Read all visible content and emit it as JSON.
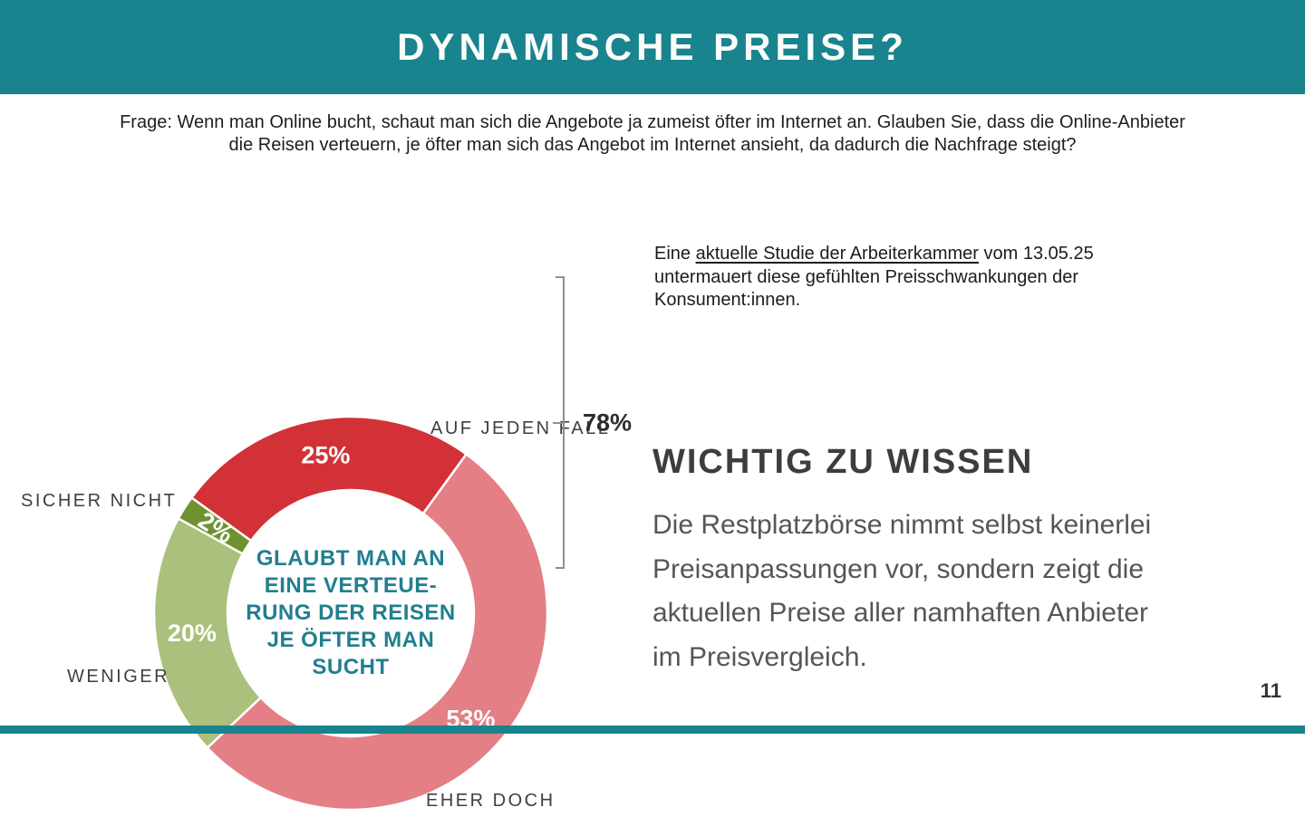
{
  "slide": {
    "title": "DYNAMISCHE PREISE?",
    "question": "Frage: Wenn man Online bucht, schaut man sich die Angebote ja zumeist öfter im Internet an. Glauben Sie, dass die Online-Anbieter\ndie Reisen verteuern, je öfter man sich das Angebot im Internet ansieht, da dadurch die Nachfrage steigt?",
    "page_number": "11"
  },
  "study_note": {
    "prefix": "Eine ",
    "link_text": "aktuelle Studie der Arbeiterkammer",
    "suffix": " vom 13.05.25 untermauert diese gefühlten Preisschwankungen der Konsument:innen."
  },
  "info": {
    "heading": "WICHTIG ZU WISSEN",
    "body": "Die Restplatzbörse nimmt selbst keinerlei\nPreisanpassungen vor, sondern zeigt die\naktuellen Preise aller namhaften Anbieter\nim Preisvergleich."
  },
  "chart_data": {
    "type": "pie",
    "variant": "donut",
    "title": "",
    "center_label": "GLAUBT MAN AN\nEINE VERTEUE-\nRUNG DER REISEN\nJE ÖFTER MAN\nSUCHT",
    "center_label_color": "#217f8e",
    "start_angle_deg": -54,
    "direction": "clockwise",
    "segments": [
      {
        "label": "AUF JEDEN FALL",
        "value": 25,
        "pct_label": "25%",
        "color": "#d23138"
      },
      {
        "label": "EHER DOCH",
        "value": 53,
        "pct_label": "53%",
        "color": "#e37f85"
      },
      {
        "label": "WENIGER",
        "value": 20,
        "pct_label": "20%",
        "color": "#abc07c"
      },
      {
        "label": "SICHER NICHT",
        "value": 2,
        "pct_label": "2%",
        "color": "#6f922f"
      }
    ],
    "bracket": {
      "label": "78%",
      "covers": [
        "AUF JEDEN FALL",
        "EHER DOCH"
      ]
    }
  },
  "colors": {
    "accent_teal": "#19838e",
    "label_gray": "#3f3f3f",
    "bracket_gray": "#8f8f8f"
  }
}
